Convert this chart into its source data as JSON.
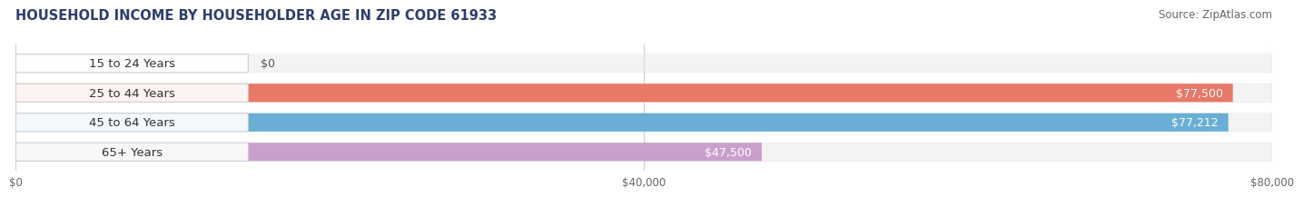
{
  "title": "HOUSEHOLD INCOME BY HOUSEHOLDER AGE IN ZIP CODE 61933",
  "source": "Source: ZipAtlas.com",
  "categories": [
    "15 to 24 Years",
    "25 to 44 Years",
    "45 to 64 Years",
    "65+ Years"
  ],
  "values": [
    0,
    77500,
    77212,
    47500
  ],
  "bar_colors": [
    "#f0c89a",
    "#e87868",
    "#6aaed6",
    "#c9a0cc"
  ],
  "bar_bg_color": "#e8e8e8",
  "xlim": [
    0,
    80000
  ],
  "xticks": [
    0,
    40000,
    80000
  ],
  "xtick_labels": [
    "$0",
    "$40,000",
    "$80,000"
  ],
  "title_fontsize": 10.5,
  "source_fontsize": 8.5,
  "bar_label_fontsize": 9,
  "cat_label_fontsize": 9.5,
  "value_labels": [
    "$0",
    "$77,500",
    "$77,212",
    "$47,500"
  ],
  "background_color": "#ffffff",
  "bar_height": 0.62,
  "label_bg_color": "#ffffff"
}
